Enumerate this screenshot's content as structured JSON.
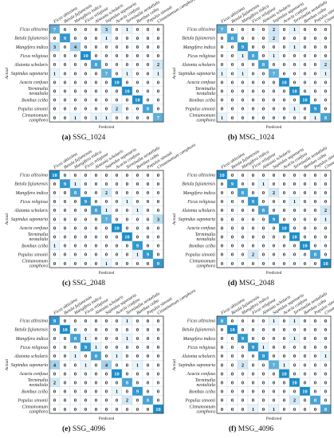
{
  "class_labels": [
    "Ficus altissima",
    "Betula fujianensis",
    "Mangifera indica",
    "Ficus religiosa",
    "Alstonia scholaris",
    "Sapindus saponaria",
    "Acacia confusa",
    "Terminalia neotaliala",
    "Bombax ceiba",
    "Populus simonii",
    "Cinnamomum camphora"
  ],
  "row_label_lines": [
    [
      "Ficus altissima"
    ],
    [
      "Betula fujianensis"
    ],
    [
      "Mangifera indica"
    ],
    [
      "Ficus religiosa"
    ],
    [
      "Alstonia scholaris"
    ],
    [
      "Sapindus saponaria"
    ],
    [
      "Acacia confusa"
    ],
    [
      "Terminalia",
      "neotaliala"
    ],
    [
      "Bombax ceiba"
    ],
    [
      "Populus simonii"
    ],
    [
      "Cinnamomum",
      "camphora"
    ]
  ],
  "axis_labels": {
    "y": "Actual",
    "x": "Predicted"
  },
  "colors": {
    "cell_low": "#ffffff",
    "cell_high": "#1c8cc8",
    "grid": "#b7cfe0",
    "frame": "#333333"
  },
  "chart_data": [
    {
      "type": "heatmap",
      "letter": "(a)",
      "name": "SSG_1024",
      "xlabel": "Predicted",
      "ylabel": "Actual",
      "matrix": [
        [
          7,
          0,
          0,
          0,
          0,
          3,
          0,
          1,
          0,
          0,
          0
        ],
        [
          0,
          9,
          0,
          0,
          0,
          1,
          0,
          0,
          0,
          0,
          0
        ],
        [
          3,
          0,
          4,
          0,
          0,
          0,
          0,
          0,
          0,
          0,
          0
        ],
        [
          0,
          0,
          0,
          10,
          0,
          0,
          0,
          0,
          0,
          0,
          0
        ],
        [
          0,
          0,
          0,
          0,
          8,
          0,
          0,
          0,
          0,
          0,
          2
        ],
        [
          1,
          0,
          0,
          0,
          0,
          7,
          0,
          1,
          0,
          0,
          1
        ],
        [
          0,
          0,
          0,
          0,
          0,
          0,
          10,
          0,
          0,
          0,
          0
        ],
        [
          0,
          0,
          0,
          0,
          0,
          0,
          0,
          10,
          0,
          0,
          0
        ],
        [
          0,
          0,
          0,
          0,
          0,
          0,
          0,
          0,
          10,
          0,
          0
        ],
        [
          0,
          0,
          0,
          0,
          0,
          0,
          2,
          0,
          0,
          8,
          0
        ],
        [
          0,
          0,
          1,
          0,
          1,
          1,
          0,
          0,
          0,
          0,
          7
        ]
      ]
    },
    {
      "type": "heatmap",
      "letter": "(b)",
      "name": "MSG_1024",
      "xlabel": "Predicted",
      "ylabel": "Actual",
      "matrix": [
        [
          7,
          0,
          0,
          0,
          0,
          2,
          0,
          1,
          0,
          0,
          0
        ],
        [
          0,
          8,
          0,
          0,
          0,
          2,
          0,
          0,
          0,
          0,
          0
        ],
        [
          0,
          0,
          9,
          0,
          0,
          0,
          0,
          1,
          0,
          0,
          0
        ],
        [
          0,
          0,
          1,
          8,
          0,
          1,
          0,
          0,
          0,
          0,
          0
        ],
        [
          0,
          0,
          0,
          0,
          8,
          0,
          0,
          0,
          0,
          0,
          2
        ],
        [
          1,
          0,
          1,
          0,
          0,
          7,
          0,
          0,
          0,
          0,
          1
        ],
        [
          0,
          0,
          0,
          0,
          0,
          0,
          10,
          0,
          0,
          0,
          0
        ],
        [
          0,
          0,
          0,
          0,
          0,
          0,
          0,
          10,
          0,
          0,
          0
        ],
        [
          0,
          0,
          0,
          0,
          0,
          0,
          0,
          0,
          10,
          0,
          0
        ],
        [
          0,
          0,
          0,
          0,
          0,
          0,
          0,
          1,
          0,
          9,
          0
        ],
        [
          1,
          0,
          0,
          0,
          0,
          0,
          0,
          0,
          0,
          1,
          8
        ]
      ]
    },
    {
      "type": "heatmap",
      "letter": "(c)",
      "name": "SSG_2048",
      "xlabel": "Predicted",
      "ylabel": "Actual",
      "matrix": [
        [
          10,
          0,
          0,
          0,
          0,
          0,
          0,
          0,
          0,
          0,
          0
        ],
        [
          0,
          9,
          1,
          0,
          0,
          0,
          0,
          0,
          0,
          0,
          0
        ],
        [
          0,
          0,
          8,
          0,
          0,
          2,
          0,
          0,
          0,
          0,
          0
        ],
        [
          0,
          0,
          0,
          9,
          0,
          0,
          0,
          1,
          0,
          0,
          0
        ],
        [
          0,
          0,
          0,
          0,
          8,
          1,
          0,
          0,
          1,
          0,
          0
        ],
        [
          0,
          0,
          0,
          0,
          0,
          7,
          0,
          0,
          0,
          0,
          3
        ],
        [
          0,
          0,
          0,
          0,
          0,
          0,
          10,
          0,
          0,
          0,
          0
        ],
        [
          0,
          0,
          0,
          0,
          0,
          0,
          0,
          10,
          0,
          0,
          0
        ],
        [
          1,
          0,
          0,
          0,
          0,
          0,
          0,
          0,
          9,
          0,
          0
        ],
        [
          0,
          0,
          0,
          0,
          0,
          0,
          0,
          0,
          1,
          9,
          0
        ],
        [
          0,
          0,
          0,
          0,
          0,
          1,
          0,
          0,
          0,
          0,
          9
        ]
      ]
    },
    {
      "type": "heatmap",
      "letter": "(d)",
      "name": "MSG_2048",
      "xlabel": "Predicted",
      "ylabel": "Actual",
      "matrix": [
        [
          10,
          0,
          0,
          0,
          0,
          0,
          0,
          0,
          0,
          0,
          0
        ],
        [
          0,
          9,
          0,
          0,
          1,
          0,
          0,
          0,
          0,
          0,
          0
        ],
        [
          0,
          0,
          8,
          0,
          0,
          2,
          0,
          0,
          0,
          0,
          0
        ],
        [
          0,
          0,
          0,
          9,
          0,
          0,
          0,
          1,
          0,
          0,
          0
        ],
        [
          0,
          0,
          0,
          0,
          8,
          0,
          0,
          0,
          0,
          0,
          2
        ],
        [
          0,
          0,
          0,
          0,
          0,
          9,
          0,
          0,
          0,
          0,
          1
        ],
        [
          0,
          0,
          0,
          0,
          0,
          0,
          10,
          0,
          0,
          0,
          0
        ],
        [
          0,
          0,
          0,
          0,
          0,
          0,
          0,
          10,
          0,
          0,
          0
        ],
        [
          0,
          0,
          0,
          0,
          0,
          0,
          0,
          0,
          10,
          0,
          0
        ],
        [
          0,
          0,
          0,
          2,
          0,
          0,
          0,
          0,
          0,
          8,
          0
        ],
        [
          0,
          0,
          0,
          0,
          0,
          0,
          0,
          0,
          0,
          0,
          10
        ]
      ]
    },
    {
      "type": "heatmap",
      "letter": "(e)",
      "name": "SSG_4096",
      "xlabel": "Predicted",
      "ylabel": "Actual",
      "matrix": [
        [
          9,
          0,
          0,
          0,
          0,
          0,
          0,
          1,
          0,
          0,
          0
        ],
        [
          0,
          10,
          0,
          0,
          0,
          0,
          0,
          0,
          0,
          0,
          0
        ],
        [
          0,
          0,
          8,
          1,
          0,
          0,
          0,
          1,
          0,
          0,
          0
        ],
        [
          0,
          0,
          0,
          9,
          1,
          0,
          0,
          0,
          0,
          0,
          0
        ],
        [
          0,
          0,
          1,
          0,
          8,
          0,
          1,
          0,
          0,
          0,
          0
        ],
        [
          4,
          0,
          0,
          1,
          0,
          4,
          0,
          0,
          1,
          0,
          0
        ],
        [
          0,
          0,
          0,
          0,
          0,
          0,
          10,
          0,
          0,
          0,
          0
        ],
        [
          2,
          0,
          0,
          0,
          0,
          0,
          0,
          8,
          0,
          0,
          0
        ],
        [
          0,
          0,
          0,
          0,
          0,
          0,
          1,
          0,
          9,
          0,
          0
        ],
        [
          0,
          0,
          0,
          0,
          0,
          0,
          0,
          2,
          0,
          8,
          0
        ],
        [
          0,
          0,
          0,
          0,
          0,
          0,
          0,
          0,
          0,
          0,
          10
        ]
      ]
    },
    {
      "type": "heatmap",
      "letter": "(f)",
      "name": "MSG_4096",
      "xlabel": "Predicted",
      "ylabel": "Actual",
      "matrix": [
        [
          8,
          0,
          0,
          0,
          0,
          1,
          0,
          1,
          0,
          0,
          0
        ],
        [
          0,
          10,
          0,
          0,
          0,
          0,
          0,
          0,
          0,
          0,
          0
        ],
        [
          0,
          0,
          9,
          0,
          0,
          0,
          0,
          1,
          0,
          0,
          0
        ],
        [
          0,
          0,
          0,
          9,
          1,
          0,
          0,
          0,
          0,
          0,
          0
        ],
        [
          0,
          0,
          0,
          0,
          9,
          0,
          0,
          0,
          0,
          0,
          1
        ],
        [
          0,
          0,
          2,
          0,
          0,
          7,
          1,
          0,
          0,
          0,
          0
        ],
        [
          0,
          0,
          0,
          0,
          0,
          0,
          10,
          0,
          0,
          0,
          0
        ],
        [
          0,
          0,
          0,
          0,
          0,
          0,
          0,
          10,
          0,
          0,
          0
        ],
        [
          0,
          0,
          0,
          0,
          0,
          0,
          0,
          0,
          10,
          0,
          0
        ],
        [
          0,
          0,
          0,
          0,
          0,
          0,
          0,
          2,
          0,
          8,
          0
        ],
        [
          0,
          0,
          0,
          1,
          0,
          1,
          0,
          0,
          0,
          0,
          8
        ]
      ]
    }
  ]
}
